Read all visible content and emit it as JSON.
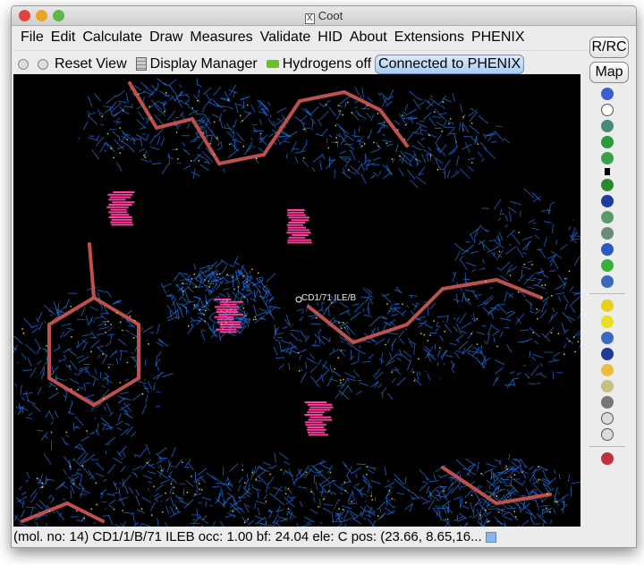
{
  "window": {
    "title": "Coot"
  },
  "menu": [
    "File",
    "Edit",
    "Calculate",
    "Draw",
    "Measures",
    "Validate",
    "HID",
    "About",
    "Extensions",
    "PHENIX"
  ],
  "toolbar": {
    "reset_view": "Reset View",
    "display_manager": "Display Manager",
    "hydrogens": "Hydrogens off",
    "phenix": "Connected to PHENIX"
  },
  "right_toolbar": {
    "rrc": "R/RC",
    "map": "Map",
    "icons": [
      "go-to-atom-icon",
      "centre-atom-icon",
      "regularize-icon",
      "real-space-refine-icon",
      "rigid-body-fit-icon",
      "play-arrow-icon",
      "rotamer-icon",
      "flip-peptide-icon",
      "side-chain-180-icon",
      "torsion-edit-icon",
      "pepflip-icon",
      "add-water-icon",
      "jed-flip-icon",
      "add-alt-conf-icon",
      "mutate-icon",
      "add-atom-icon",
      "delete-atom-icon",
      "add-terminal-residue-icon",
      "clear-pending-icon",
      "delete-icon",
      "undo-icon",
      "redo-icon",
      "colour-icon"
    ]
  },
  "viewport": {
    "atom_label": "CD1/71 ILE/B",
    "colors": {
      "mesh": "#1e6fe0",
      "bonds": "#c0504d",
      "contacts": "#ff3fa0",
      "dots": "#d8c832"
    }
  },
  "status": "(mol. no: 14)  CD1/1/B/71 ILEB occ:  1.00 bf: 24.04 ele:  C pos: (23.66, 8.65,16..."
}
